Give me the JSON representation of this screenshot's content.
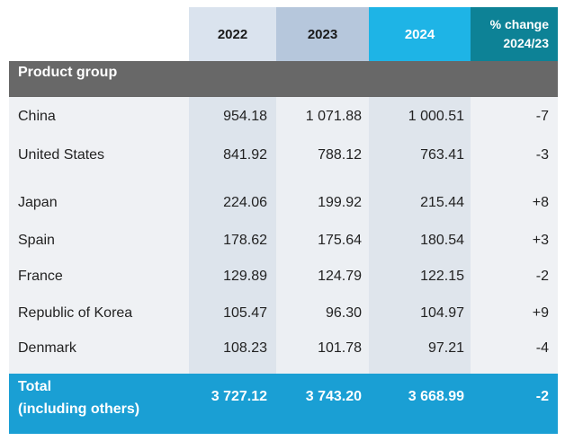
{
  "header": {
    "years": [
      "2022",
      "2023",
      "2024"
    ],
    "pct_change_line1": "% change",
    "pct_change_line2": "2024/23"
  },
  "product_group_label": "Product group",
  "rows": [
    {
      "label": "China",
      "v2022": "954.18",
      "v2023": "1 071.88",
      "v2024": "1 000.51",
      "pct": "-7"
    },
    {
      "label": "United States",
      "v2022": "841.92",
      "v2023": "788.12",
      "v2024": "763.41",
      "pct": "-3"
    },
    {
      "label": "Japan",
      "v2022": "224.06",
      "v2023": "199.92",
      "v2024": "215.44",
      "pct": "+8"
    },
    {
      "label": "Spain",
      "v2022": "178.62",
      "v2023": "175.64",
      "v2024": "180.54",
      "pct": "+3"
    },
    {
      "label": "France",
      "v2022": "129.89",
      "v2023": "124.79",
      "v2024": "122.15",
      "pct": "-2"
    },
    {
      "label": "Republic of Korea",
      "v2022": "105.47",
      "v2023": "96.30",
      "v2024": "104.97",
      "pct": "+9"
    },
    {
      "label": "Denmark",
      "v2022": "108.23",
      "v2023": "101.78",
      "v2024": "97.21",
      "pct": "-4"
    }
  ],
  "total": {
    "label_line1": "Total",
    "label_line2": "(including others)",
    "v2022": "3 727.12",
    "v2023": "3 743.20",
    "v2024": "3 668.99",
    "pct": "-2"
  },
  "colors": {
    "header_2022": "#dae3ee",
    "header_2023": "#b6c7dc",
    "header_2024": "#1eb4e6",
    "header_pct": "#0d8296",
    "product_group_bar": "#686868",
    "total_bar": "#1a9fd4"
  }
}
